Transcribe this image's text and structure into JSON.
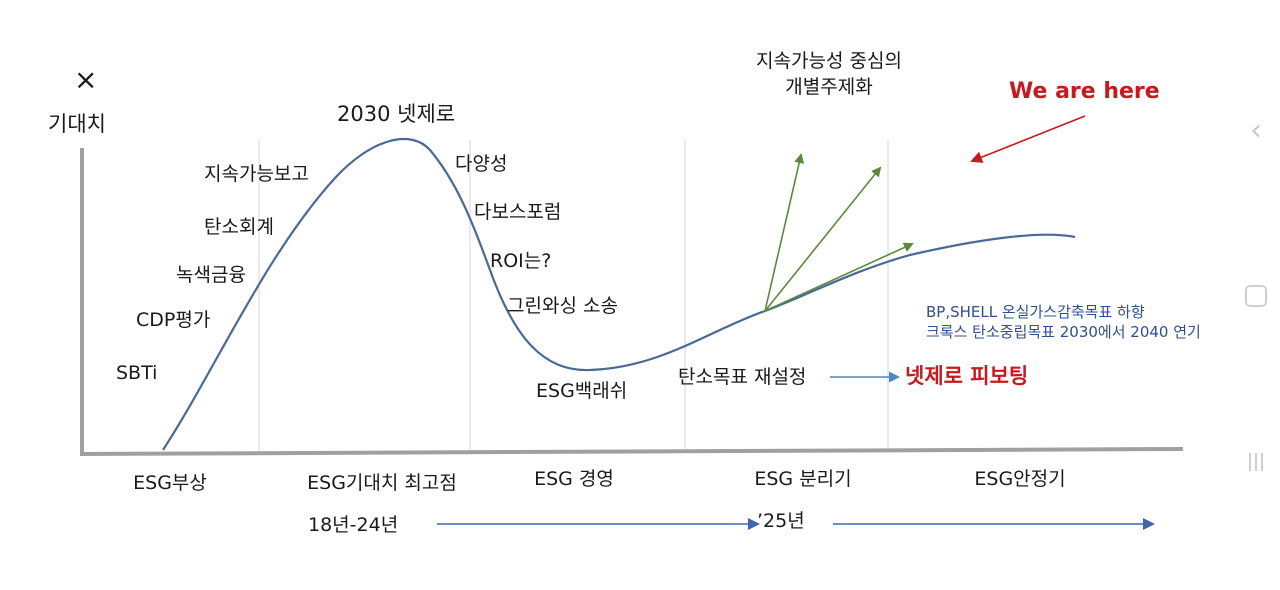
{
  "close_icon": "×",
  "y_axis_label": "기대치",
  "peak_label": "2030 넷제로",
  "rising_labels": [
    "지속가능보고",
    "탄소회계",
    "녹색금융",
    "CDP평가",
    "SBTi"
  ],
  "falling_labels": [
    "다양성",
    "다보스포럼",
    "ROI는?",
    "그린와싱 소송"
  ],
  "trough_label": "ESG백래쉬",
  "reset_label": "탄소목표 재설정",
  "pivot_label": "넷제로 피보팅",
  "divergence_label": [
    "지속가능성 중심의",
    "개별주제화"
  ],
  "we_are_here": "We are here",
  "bp_shell_note": [
    "BP,SHELL 온실가스감축목표 하향",
    "크록스 탄소중립목표 2030에서 2040 연기"
  ],
  "phases": [
    "ESG부상",
    "ESG기대치 최고점",
    "ESG 경영",
    "ESG 분리기",
    "ESG안정기"
  ],
  "timeline": {
    "range1": "18년-24년",
    "range2": "’25년"
  },
  "colors": {
    "curve": "#4a6a96",
    "green_arrow": "#5a8a3c",
    "red": "#c8191e",
    "blue_arrow": "#4f86c6",
    "axis": "#a0a0a0",
    "divider": "#dcdcdc",
    "timeline_arrow": "#3f66b0"
  },
  "side_icons": [
    "chevron-left-icon",
    "circle-home-icon",
    "recent-apps-icon"
  ]
}
